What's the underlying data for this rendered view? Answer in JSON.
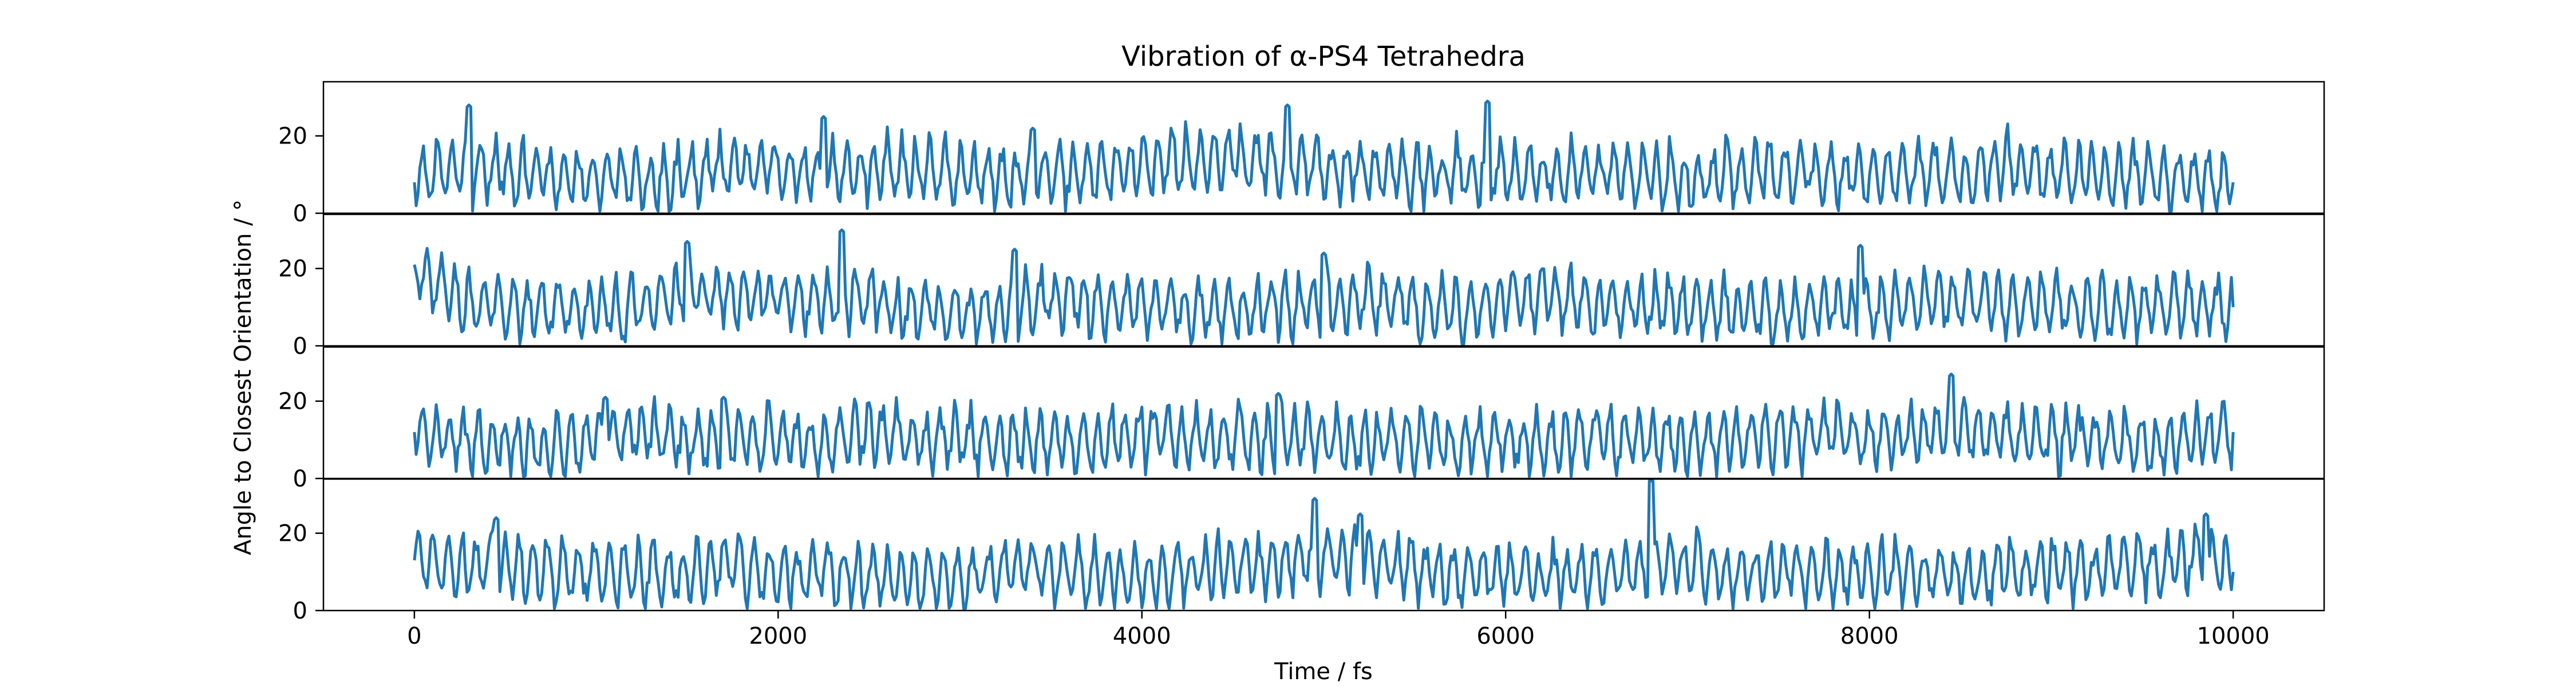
{
  "chart_data": {
    "type": "line",
    "title": "Vibration of α-PS4 Tetrahedra",
    "xlabel": "Time / fs",
    "ylabel": "Angle to Closest Orientation / °",
    "xlim": [
      -500,
      10500
    ],
    "grid": false,
    "line_color": "#1f77b4",
    "x_ticks": [
      0,
      2000,
      4000,
      6000,
      8000,
      10000
    ],
    "x_tick_labels": [
      "0",
      "2000",
      "4000",
      "6000",
      "8000",
      "10000"
    ],
    "y_ticks": [
      0,
      20
    ],
    "y_tick_labels": [
      "0",
      "20"
    ],
    "panels": [
      {
        "ylim": [
          0,
          34
        ],
        "x": [
          0,
          250,
          500,
          750,
          1000,
          1250,
          1500,
          1750,
          2000,
          2250,
          2500,
          2750,
          3000,
          3250,
          3500,
          3750,
          4000,
          4250,
          4500,
          4750,
          5000,
          5250,
          5500,
          5750,
          6000,
          6250,
          6500,
          6750,
          7000,
          7250,
          7500,
          7750,
          8000,
          8250,
          8500,
          8750,
          9000,
          9250,
          9500,
          9750,
          10000
        ],
        "values": [
          8,
          12,
          11,
          10,
          9,
          8,
          10,
          12,
          11,
          10,
          12,
          11,
          10,
          9,
          11,
          10,
          12,
          13,
          14,
          13,
          12,
          11,
          10,
          10,
          11,
          10,
          11,
          10,
          9,
          10,
          11,
          10,
          10,
          11,
          10,
          12,
          11,
          10,
          10,
          9,
          8
        ],
        "peaks": [
          [
            300,
            28
          ],
          [
            2250,
            25
          ],
          [
            3400,
            22
          ],
          [
            4800,
            28
          ],
          [
            5900,
            29
          ]
        ]
      },
      {
        "ylim": [
          0,
          34
        ],
        "x": [
          0,
          250,
          500,
          750,
          1000,
          1250,
          1500,
          1750,
          2000,
          2250,
          2500,
          2750,
          3000,
          3250,
          3500,
          3750,
          4000,
          4250,
          4500,
          4750,
          5000,
          5250,
          5500,
          5750,
          6000,
          6250,
          6500,
          6750,
          7000,
          7250,
          7500,
          7750,
          8000,
          8250,
          8500,
          8750,
          9000,
          9250,
          9500,
          9750,
          10000
        ],
        "values": [
          21,
          11,
          10,
          10,
          9,
          10,
          14,
          13,
          12,
          11,
          12,
          9,
          8,
          9,
          12,
          11,
          10,
          10,
          9,
          10,
          11,
          12,
          10,
          9,
          12,
          13,
          10,
          11,
          9,
          10,
          8,
          10,
          9,
          11,
          12,
          10,
          11,
          9,
          10,
          11,
          10
        ],
        "peaks": [
          [
            1500,
            27
          ],
          [
            2350,
            30
          ],
          [
            3300,
            25
          ],
          [
            5000,
            24
          ],
          [
            7950,
            26
          ]
        ]
      },
      {
        "ylim": [
          0,
          34
        ],
        "x": [
          0,
          250,
          500,
          750,
          1000,
          1250,
          1500,
          1750,
          2000,
          2250,
          2500,
          2750,
          3000,
          3250,
          3500,
          3750,
          4000,
          4250,
          4500,
          4750,
          5000,
          5250,
          5500,
          5750,
          6000,
          6250,
          6500,
          6750,
          7000,
          7250,
          7500,
          7750,
          8000,
          8250,
          8500,
          8750,
          9000,
          9250,
          9500,
          9750,
          10000
        ],
        "values": [
          12,
          10,
          9,
          8,
          11,
          12,
          10,
          11,
          10,
          9,
          12,
          10,
          10,
          9,
          10,
          9,
          11,
          10,
          10,
          11,
          10,
          9,
          10,
          9,
          10,
          10,
          11,
          10,
          9,
          10,
          11,
          12,
          10,
          11,
          13,
          11,
          10,
          10,
          9,
          10,
          12
        ],
        "peaks": [
          [
            1050,
            21
          ],
          [
            1700,
            21
          ],
          [
            4750,
            22
          ],
          [
            8450,
            27
          ]
        ]
      },
      {
        "ylim": [
          0,
          34
        ],
        "x": [
          0,
          250,
          500,
          750,
          1000,
          1250,
          1500,
          1750,
          2000,
          2250,
          2500,
          2750,
          3000,
          3250,
          3500,
          3750,
          4000,
          4250,
          4500,
          4750,
          5000,
          5250,
          5500,
          5750,
          6000,
          6250,
          6500,
          6750,
          7000,
          7250,
          7500,
          7750,
          8000,
          8250,
          8500,
          8750,
          9000,
          9250,
          9500,
          9750,
          10000
        ],
        "values": [
          13,
          11,
          12,
          10,
          10,
          9,
          10,
          11,
          9,
          10,
          9,
          8,
          9,
          10,
          11,
          10,
          9,
          10,
          11,
          12,
          14,
          13,
          11,
          9,
          10,
          9,
          10,
          11,
          12,
          10,
          10,
          9,
          10,
          10,
          9,
          10,
          11,
          10,
          12,
          13,
          10
        ],
        "peaks": [
          [
            450,
            24
          ],
          [
            4950,
            29
          ],
          [
            5200,
            25
          ],
          [
            6800,
            34
          ],
          [
            9850,
            25
          ]
        ]
      }
    ]
  }
}
